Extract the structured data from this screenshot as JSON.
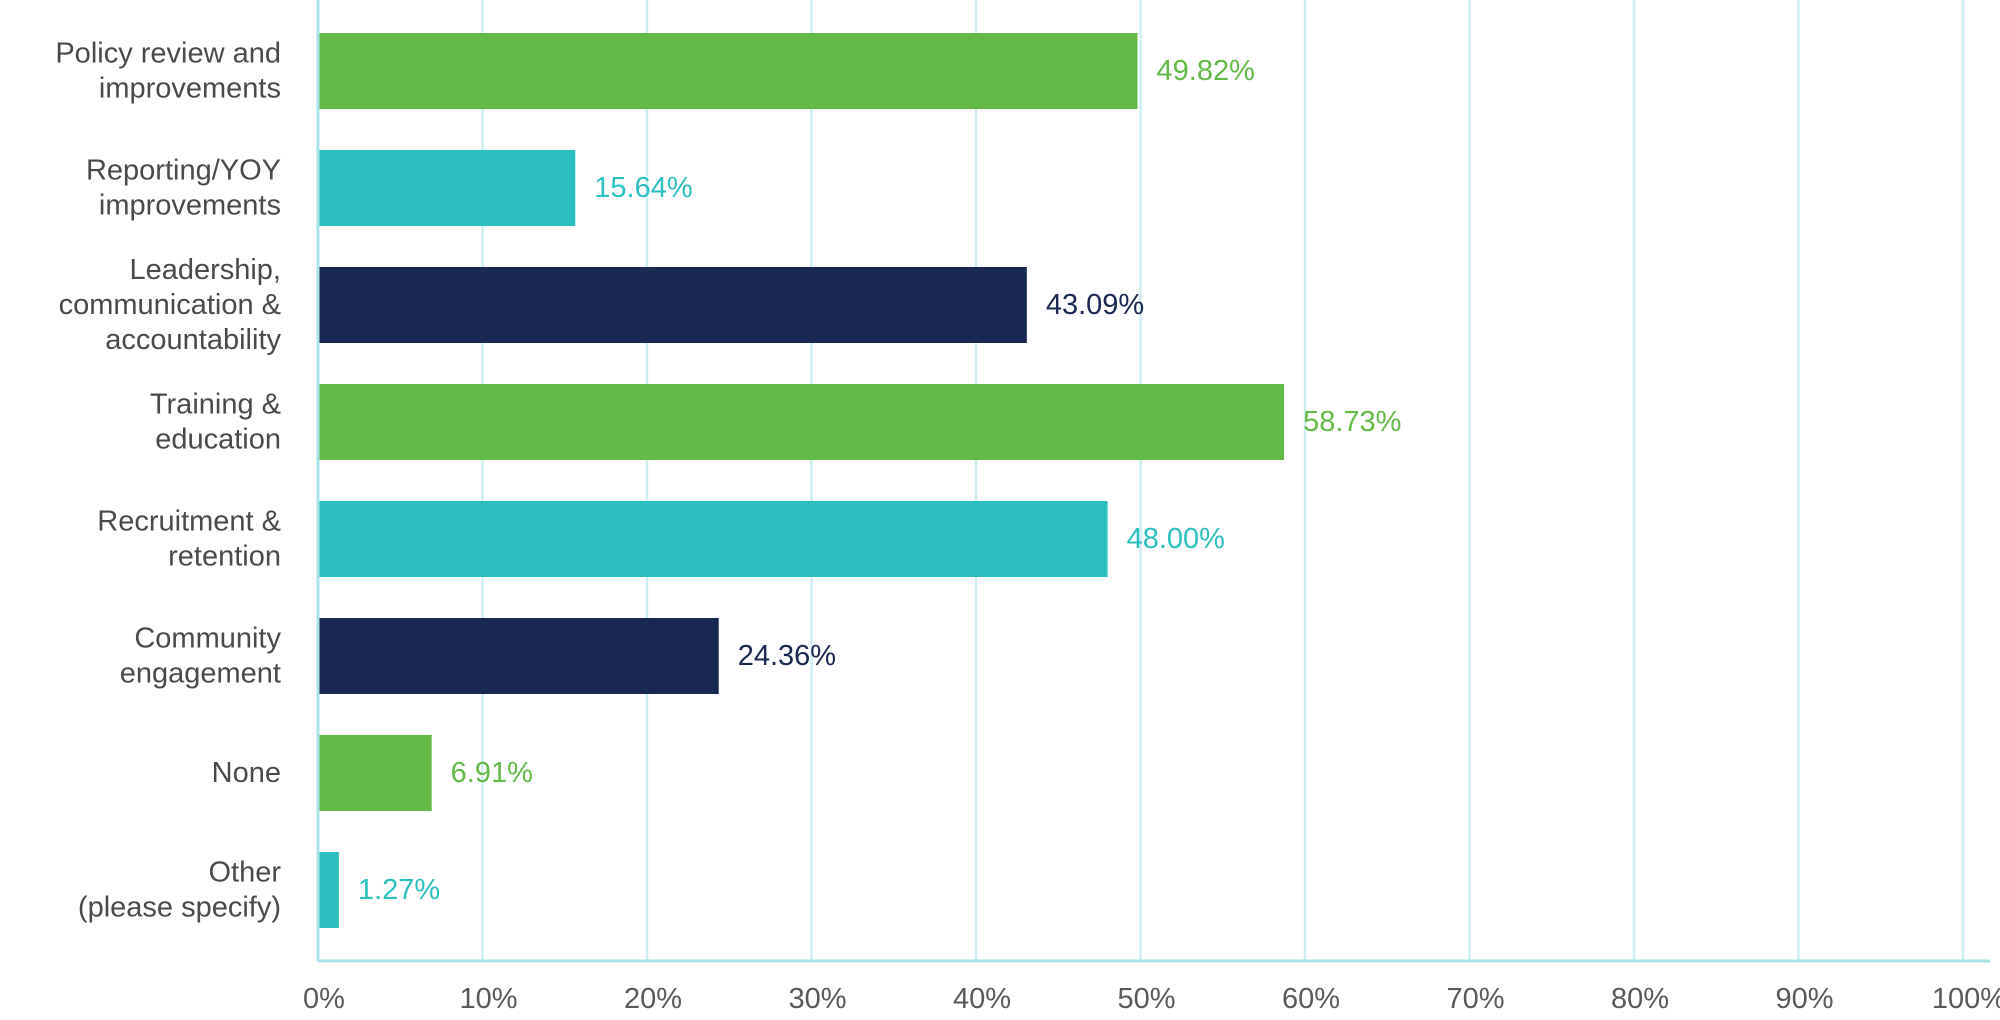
{
  "chart_data": {
    "type": "bar",
    "orientation": "horizontal",
    "title": "",
    "xlabel": "",
    "ylabel": "",
    "xlim": [
      0,
      100
    ],
    "grid": true,
    "legend": "none",
    "categories": [
      [
        "Policy review and",
        "improvements"
      ],
      [
        "Reporting/YOY",
        "improvements"
      ],
      [
        "Leadership,",
        "communication &",
        "accountability"
      ],
      [
        "Training &",
        "education"
      ],
      [
        "Recruitment &",
        "retention"
      ],
      [
        "Community",
        "engagement"
      ],
      [
        "None"
      ],
      [
        "Other",
        "(please specify)"
      ]
    ],
    "values": [
      49.82,
      15.64,
      43.09,
      58.73,
      48.0,
      24.36,
      6.91,
      1.27
    ],
    "value_labels": [
      "49.82%",
      "15.64%",
      "43.09%",
      "58.73%",
      "48.00%",
      "24.36%",
      "6.91%",
      "1.27%"
    ],
    "bar_colors": [
      "#63ba47",
      "#2cbfbf",
      "#182850",
      "#63ba47",
      "#2cbfbf",
      "#182850",
      "#63ba47",
      "#2cbfbf"
    ],
    "x_ticks": [
      0,
      10,
      20,
      30,
      40,
      50,
      60,
      70,
      80,
      90,
      100
    ],
    "x_tick_labels": [
      "0%",
      "10%",
      "20%",
      "30%",
      "40%",
      "50%",
      "60%",
      "70%",
      "80%",
      "90%",
      "100%"
    ],
    "grid_color": "#cdeff1",
    "axis_color": "#a9e3e8"
  }
}
